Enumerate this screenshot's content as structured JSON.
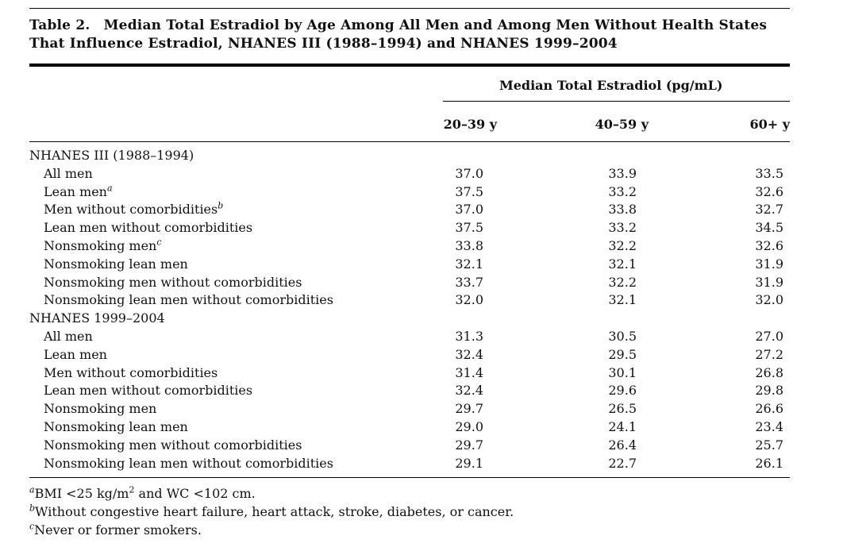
{
  "title": "Table 2. Median Total Estradiol by Age Among All Men and Among Men Without Health States That Influence Estradiol, NHANES III (1988–1994) and NHANES 1999–2004",
  "header": {
    "group": "Median Total Estradiol (pg/mL)",
    "columns": [
      "20–39 y",
      "40–59 y",
      "60+ y"
    ]
  },
  "sections": [
    {
      "name": "NHANES III (1988–1994)",
      "rows": [
        {
          "label": "All men",
          "sup": "",
          "values": [
            "37.0",
            "33.9",
            "33.5"
          ]
        },
        {
          "label": "Lean men",
          "sup": "a",
          "values": [
            "37.5",
            "33.2",
            "32.6"
          ]
        },
        {
          "label": "Men without comorbidities",
          "sup": "b",
          "values": [
            "37.0",
            "33.8",
            "32.7"
          ]
        },
        {
          "label": "Lean men without comorbidities",
          "sup": "",
          "values": [
            "37.5",
            "33.2",
            "34.5"
          ]
        },
        {
          "label": "Nonsmoking men",
          "sup": "c",
          "values": [
            "33.8",
            "32.2",
            "32.6"
          ]
        },
        {
          "label": "Nonsmoking lean men",
          "sup": "",
          "values": [
            "32.1",
            "32.1",
            "31.9"
          ]
        },
        {
          "label": "Nonsmoking men without comorbidities",
          "sup": "",
          "values": [
            "33.7",
            "32.2",
            "31.9"
          ]
        },
        {
          "label": "Nonsmoking lean men without comorbidities",
          "sup": "",
          "values": [
            "32.0",
            "32.1",
            "32.0"
          ]
        }
      ]
    },
    {
      "name": "NHANES 1999–2004",
      "rows": [
        {
          "label": "All men",
          "sup": "",
          "values": [
            "31.3",
            "30.5",
            "27.0"
          ]
        },
        {
          "label": "Lean men",
          "sup": "",
          "values": [
            "32.4",
            "29.5",
            "27.2"
          ]
        },
        {
          "label": "Men without comorbidities",
          "sup": "",
          "values": [
            "31.4",
            "30.1",
            "26.8"
          ]
        },
        {
          "label": "Lean men without comorbidities",
          "sup": "",
          "values": [
            "32.4",
            "29.6",
            "29.8"
          ]
        },
        {
          "label": "Nonsmoking men",
          "sup": "",
          "values": [
            "29.7",
            "26.5",
            "26.6"
          ]
        },
        {
          "label": "Nonsmoking lean men",
          "sup": "",
          "values": [
            "29.0",
            "24.1",
            "23.4"
          ]
        },
        {
          "label": "Nonsmoking men without comorbidities",
          "sup": "",
          "values": [
            "29.7",
            "26.4",
            "25.7"
          ]
        },
        {
          "label": "Nonsmoking lean men without comorbidities",
          "sup": "",
          "values": [
            "29.1",
            "22.7",
            "26.1"
          ]
        }
      ]
    }
  ],
  "footnotes": [
    {
      "mark": "a",
      "pre": "BMI <25 kg/m",
      "sup": "2",
      "post": " and WC <102 cm."
    },
    {
      "mark": "b",
      "pre": "Without congestive heart failure, heart attack, stroke, diabetes, or cancer.",
      "sup": "",
      "post": ""
    },
    {
      "mark": "c",
      "pre": "Never or former smokers.",
      "sup": "",
      "post": ""
    }
  ]
}
